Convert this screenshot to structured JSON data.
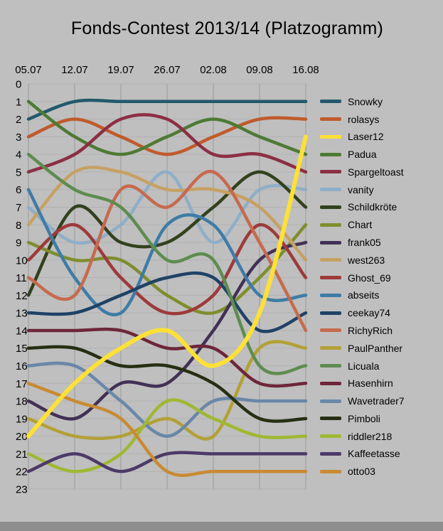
{
  "chart_data": {
    "type": "line",
    "subtype": "bump-rank",
    "title": "Fonds-Contest 2013/14 (Platzogramm)",
    "categories": [
      "05.07",
      "12.07",
      "19.07",
      "26.07",
      "02.08",
      "09.08",
      "16.08"
    ],
    "xlabel": "",
    "ylabel": "",
    "ylim": [
      0,
      23
    ],
    "y_tick_step": 1,
    "y_direction": "down",
    "grid": true,
    "legend_position": "right",
    "line_style": "smooth",
    "series": [
      {
        "name": "Snowky",
        "color": "#21596B",
        "values": [
          2,
          1,
          1,
          1,
          1,
          1,
          1
        ]
      },
      {
        "name": "rolasys",
        "color": "#C05A2C",
        "values": [
          3,
          2,
          3,
          4,
          3,
          2,
          2
        ]
      },
      {
        "name": "Laser12",
        "color": "#FFE135",
        "values": [
          20,
          17,
          15,
          14,
          16,
          13,
          3
        ],
        "width": 6,
        "on_top": true
      },
      {
        "name": "Padua",
        "color": "#4E7A34",
        "values": [
          1,
          3,
          4,
          3,
          2,
          3,
          4
        ]
      },
      {
        "name": "Spargeltoast",
        "color": "#8C2F44",
        "values": [
          5,
          4,
          2,
          2,
          4,
          4,
          5
        ]
      },
      {
        "name": "vanity",
        "color": "#8FAEC7",
        "values": [
          7,
          9,
          8,
          5,
          9,
          6,
          6
        ]
      },
      {
        "name": "Schildkröte",
        "color": "#33411C",
        "values": [
          12,
          7,
          9,
          9,
          7,
          5,
          7
        ]
      },
      {
        "name": "Chart",
        "color": "#7F8E2E",
        "values": [
          9,
          10,
          10,
          12,
          13,
          11,
          8
        ]
      },
      {
        "name": "frank05",
        "color": "#413155",
        "values": [
          18,
          19,
          17,
          17,
          14,
          10,
          9
        ]
      },
      {
        "name": "west263",
        "color": "#C7A163",
        "values": [
          8,
          5,
          5,
          6,
          6,
          7,
          10
        ]
      },
      {
        "name": "Ghost_69",
        "color": "#9E3A3A",
        "values": [
          10,
          8,
          11,
          13,
          12,
          8,
          11
        ]
      },
      {
        "name": "abseits",
        "color": "#3E7CA6",
        "values": [
          6,
          11,
          13,
          8,
          8,
          12,
          12
        ]
      },
      {
        "name": "ceekay74",
        "color": "#1F4265",
        "values": [
          13,
          13,
          12,
          11,
          11,
          14,
          13
        ]
      },
      {
        "name": "RichyRich",
        "color": "#C66A4E",
        "values": [
          11,
          12,
          6,
          7,
          5,
          9,
          14
        ]
      },
      {
        "name": "PaulPanther",
        "color": "#B3A036",
        "values": [
          19,
          20,
          20,
          19,
          20,
          15,
          15
        ]
      },
      {
        "name": "Licuala",
        "color": "#5E8C50",
        "values": [
          4,
          6,
          7,
          10,
          10,
          16,
          16
        ]
      },
      {
        "name": "Hasenhirn",
        "color": "#6E2639",
        "values": [
          14,
          14,
          14,
          15,
          15,
          17,
          17
        ]
      },
      {
        "name": "Wavetrader7",
        "color": "#6987A8",
        "values": [
          16,
          16,
          18,
          20,
          18,
          18,
          18
        ]
      },
      {
        "name": "Pimboli",
        "color": "#262F12",
        "values": [
          15,
          15,
          16,
          16,
          17,
          19,
          19
        ]
      },
      {
        "name": "riddler218",
        "color": "#9FB832",
        "values": [
          21,
          22,
          21,
          18,
          19,
          20,
          20
        ]
      },
      {
        "name": "Kaffeetasse",
        "color": "#4C3A68",
        "values": [
          22,
          21,
          22,
          21,
          21,
          21,
          21
        ]
      },
      {
        "name": "otto03",
        "color": "#C98A32",
        "values": [
          17,
          18,
          19,
          22,
          22,
          22,
          22
        ]
      }
    ]
  }
}
